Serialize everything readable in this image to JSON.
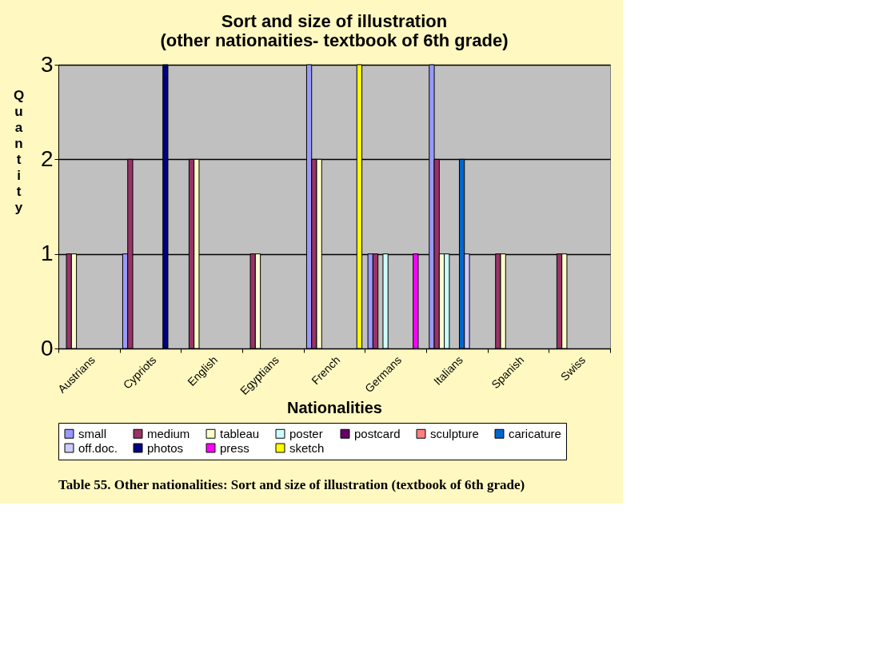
{
  "chart_data": {
    "type": "bar",
    "title": [
      "Sort and size of illustration",
      "(other nationaities- textbook of 6th grade)"
    ],
    "xlabel": "Nationalities",
    "ylabel": "Quantity",
    "categories": [
      "Austrians",
      "Cypriots",
      "English",
      "Egyptians",
      "French",
      "Germans",
      "Italians",
      "Spanish",
      "Swiss"
    ],
    "series": [
      {
        "name": "small",
        "color": "#9999ff",
        "values": [
          null,
          1,
          null,
          null,
          3,
          1,
          3,
          null,
          null
        ]
      },
      {
        "name": "medium",
        "color": "#993366",
        "values": [
          1,
          2,
          2,
          1,
          2,
          1,
          2,
          1,
          1
        ]
      },
      {
        "name": "tableau",
        "color": "#ffffcc",
        "values": [
          1,
          null,
          2,
          1,
          2,
          null,
          1,
          1,
          1
        ]
      },
      {
        "name": "poster",
        "color": "#ccffff",
        "values": [
          null,
          null,
          null,
          null,
          null,
          1,
          1,
          null,
          null
        ]
      },
      {
        "name": "postcard",
        "color": "#660066",
        "values": [
          null,
          null,
          null,
          null,
          null,
          null,
          null,
          null,
          null
        ]
      },
      {
        "name": "sculpture",
        "color": "#ff8080",
        "values": [
          null,
          null,
          null,
          null,
          null,
          null,
          null,
          null,
          null
        ]
      },
      {
        "name": "caricature",
        "color": "#0066cc",
        "values": [
          null,
          null,
          null,
          null,
          null,
          null,
          2,
          null,
          null
        ]
      },
      {
        "name": "off.doc.",
        "color": "#ccccff",
        "values": [
          null,
          null,
          null,
          null,
          null,
          null,
          1,
          null,
          null
        ]
      },
      {
        "name": "photos",
        "color": "#000080",
        "values": [
          null,
          3,
          null,
          null,
          null,
          null,
          null,
          null,
          null
        ]
      },
      {
        "name": "press",
        "color": "#ff00ff",
        "values": [
          null,
          null,
          null,
          null,
          null,
          1,
          null,
          null,
          null
        ]
      },
      {
        "name": "sketch",
        "color": "#ffff00",
        "values": [
          null,
          null,
          null,
          null,
          3,
          null,
          null,
          null,
          null
        ]
      }
    ],
    "ylim": [
      0,
      3
    ],
    "yticks": [
      0,
      1,
      2,
      3
    ],
    "grid": "y",
    "legend": "bottom",
    "annotations": [
      "Table  55. Other nationalities: Sort and size of illustration (textbook of 6th grade)"
    ]
  }
}
